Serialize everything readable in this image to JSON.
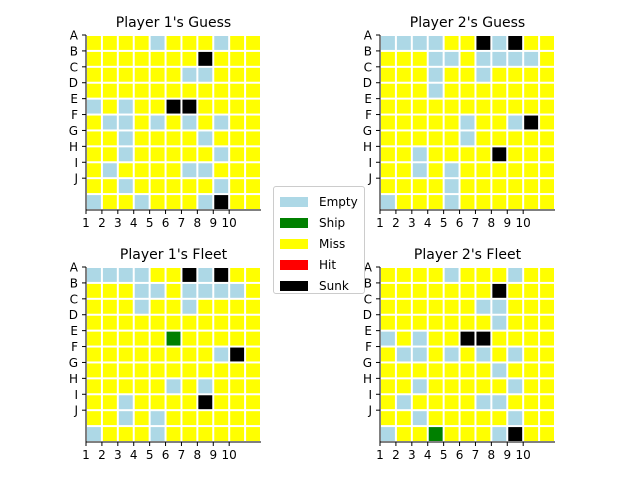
{
  "colors": {
    "0": "#add8e6",
    "1": "#008000",
    "2": "#ffff00",
    "3": "#ff0000",
    "4": "#000000",
    "grid": "#ffffff",
    "axis": "#000000"
  },
  "row_labels": [
    "A",
    "B",
    "C",
    "D",
    "E",
    "F",
    "G",
    "H",
    "I",
    "J"
  ],
  "col_labels": [
    "1",
    "2",
    "3",
    "4",
    "5",
    "6",
    "7",
    "8",
    "9",
    "10"
  ],
  "legend": [
    {
      "label": "Empty",
      "state": 0
    },
    {
      "label": "Ship",
      "state": 1
    },
    {
      "label": "Miss",
      "state": 2
    },
    {
      "label": "Hit",
      "state": 3
    },
    {
      "label": "Sunk",
      "state": 4
    }
  ],
  "boards": [
    {
      "title": "Player 1's Guess",
      "cells": [
        [
          2,
          2,
          2,
          2,
          0,
          2,
          2,
          2,
          0,
          2
        ],
        [
          2,
          2,
          2,
          2,
          2,
          2,
          2,
          4,
          2,
          2
        ],
        [
          2,
          2,
          2,
          2,
          2,
          2,
          0,
          0,
          2,
          2
        ],
        [
          2,
          2,
          2,
          2,
          2,
          2,
          2,
          2,
          2,
          2
        ],
        [
          0,
          2,
          0,
          2,
          2,
          4,
          4,
          2,
          2,
          2
        ],
        [
          2,
          0,
          0,
          2,
          0,
          2,
          0,
          2,
          0,
          2
        ],
        [
          2,
          2,
          0,
          2,
          2,
          2,
          2,
          0,
          2,
          2
        ],
        [
          2,
          2,
          0,
          2,
          2,
          2,
          2,
          2,
          0,
          2
        ],
        [
          2,
          0,
          2,
          2,
          2,
          2,
          0,
          0,
          2,
          2
        ],
        [
          2,
          2,
          0,
          2,
          2,
          2,
          2,
          2,
          0,
          2
        ]
      ],
      "extra_row": [
        0,
        2,
        2,
        0,
        2,
        2,
        2,
        0,
        4,
        2
      ]
    },
    {
      "title": "Player 2's Guess",
      "cells": [
        [
          0,
          0,
          0,
          0,
          2,
          2,
          4,
          0,
          4,
          2
        ],
        [
          2,
          2,
          2,
          0,
          0,
          2,
          0,
          0,
          0,
          0
        ],
        [
          2,
          2,
          2,
          0,
          2,
          2,
          0,
          2,
          2,
          2
        ],
        [
          2,
          2,
          2,
          0,
          2,
          2,
          2,
          2,
          2,
          2
        ],
        [
          2,
          2,
          2,
          2,
          2,
          2,
          2,
          2,
          2,
          2
        ],
        [
          2,
          2,
          2,
          2,
          2,
          0,
          2,
          2,
          0,
          4
        ],
        [
          2,
          2,
          2,
          2,
          2,
          0,
          2,
          2,
          2,
          2
        ],
        [
          2,
          2,
          0,
          2,
          2,
          2,
          2,
          4,
          2,
          2
        ],
        [
          2,
          2,
          0,
          2,
          0,
          2,
          2,
          2,
          2,
          2
        ],
        [
          2,
          2,
          2,
          2,
          0,
          2,
          2,
          2,
          2,
          2
        ]
      ],
      "extra_row": [
        0,
        2,
        2,
        2,
        0,
        2,
        2,
        2,
        2,
        2
      ]
    },
    {
      "title": "Player 1's Fleet",
      "cells": [
        [
          0,
          0,
          0,
          0,
          2,
          2,
          4,
          0,
          4,
          2
        ],
        [
          2,
          2,
          2,
          0,
          0,
          2,
          0,
          0,
          0,
          0
        ],
        [
          2,
          2,
          2,
          0,
          2,
          2,
          0,
          2,
          2,
          2
        ],
        [
          2,
          2,
          2,
          2,
          2,
          2,
          2,
          2,
          2,
          2
        ],
        [
          2,
          2,
          2,
          2,
          2,
          1,
          2,
          2,
          2,
          2
        ],
        [
          2,
          2,
          2,
          2,
          2,
          2,
          2,
          2,
          0,
          4
        ],
        [
          2,
          2,
          2,
          2,
          2,
          2,
          2,
          2,
          2,
          2
        ],
        [
          2,
          2,
          2,
          2,
          2,
          0,
          2,
          0,
          2,
          2
        ],
        [
          2,
          2,
          0,
          2,
          2,
          2,
          2,
          4,
          2,
          2
        ],
        [
          2,
          2,
          0,
          2,
          0,
          2,
          2,
          2,
          2,
          2
        ]
      ],
      "extra_row": [
        0,
        2,
        2,
        2,
        0,
        2,
        2,
        2,
        2,
        2
      ]
    },
    {
      "title": "Player 2's Fleet",
      "cells": [
        [
          2,
          2,
          2,
          2,
          0,
          2,
          2,
          2,
          0,
          2
        ],
        [
          2,
          2,
          2,
          2,
          2,
          2,
          2,
          4,
          2,
          2
        ],
        [
          2,
          2,
          2,
          2,
          2,
          2,
          0,
          0,
          2,
          2
        ],
        [
          2,
          2,
          2,
          2,
          2,
          2,
          2,
          0,
          2,
          2
        ],
        [
          0,
          2,
          0,
          2,
          2,
          4,
          4,
          2,
          2,
          2
        ],
        [
          2,
          0,
          0,
          2,
          0,
          2,
          0,
          2,
          0,
          2
        ],
        [
          2,
          2,
          2,
          2,
          2,
          2,
          2,
          0,
          2,
          2
        ],
        [
          2,
          2,
          0,
          2,
          2,
          2,
          2,
          2,
          0,
          2
        ],
        [
          2,
          0,
          2,
          2,
          2,
          2,
          0,
          0,
          2,
          2
        ],
        [
          2,
          2,
          0,
          2,
          2,
          2,
          2,
          2,
          0,
          2
        ]
      ],
      "extra_row": [
        0,
        2,
        2,
        1,
        2,
        2,
        2,
        0,
        4,
        2
      ]
    }
  ]
}
